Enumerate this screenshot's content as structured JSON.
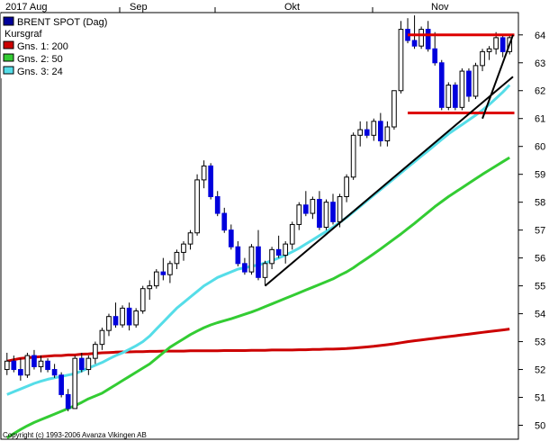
{
  "chart_data": {
    "type": "candlestick",
    "title": "BRENT SPOT (Dag)",
    "subtitle": "Kursgraf",
    "x_labels": [
      "2017 Aug",
      "Sep",
      "Okt",
      "Nov"
    ],
    "y_ticks": [
      50,
      51,
      52,
      53,
      54,
      55,
      56,
      57,
      58,
      59,
      60,
      61,
      62,
      63,
      64
    ],
    "ylim": [
      49.5,
      64.8
    ],
    "grid": false,
    "legend_position": "top-left",
    "copyright": "Copyright (c) 1993-2006 Avanza Vikingen AB",
    "legend": [
      {
        "label": "Gns. 1: 200",
        "color": "#cc0000"
      },
      {
        "label": "Gns. 2: 50",
        "color": "#33cc33"
      },
      {
        "label": "Gns. 3: 24",
        "color": "#55dde8"
      }
    ],
    "colors": {
      "up": "#ffffff",
      "down": "#0000dd",
      "wick": "#000000",
      "resistance": "#dd0000",
      "trend": "#000000"
    },
    "candles": [
      [
        52.0,
        52.6,
        51.8,
        52.3
      ],
      [
        52.3,
        52.5,
        51.9,
        52.0
      ],
      [
        52.0,
        52.4,
        51.6,
        51.8
      ],
      [
        51.8,
        52.6,
        51.7,
        52.5
      ],
      [
        52.5,
        52.7,
        52.0,
        52.1
      ],
      [
        52.1,
        52.5,
        51.9,
        52.3
      ],
      [
        52.3,
        52.4,
        51.9,
        52.0
      ],
      [
        52.0,
        52.2,
        51.7,
        51.8
      ],
      [
        51.8,
        51.9,
        51.0,
        51.1
      ],
      [
        51.1,
        51.3,
        50.5,
        50.6
      ],
      [
        50.6,
        52.5,
        50.6,
        52.4
      ],
      [
        52.4,
        52.6,
        51.9,
        52.0
      ],
      [
        52.0,
        52.5,
        51.8,
        52.4
      ],
      [
        52.4,
        53.0,
        52.2,
        52.9
      ],
      [
        52.9,
        53.5,
        52.7,
        53.4
      ],
      [
        53.4,
        54.0,
        53.2,
        53.9
      ],
      [
        53.9,
        54.4,
        53.5,
        53.6
      ],
      [
        53.6,
        54.3,
        53.5,
        54.2
      ],
      [
        54.2,
        54.4,
        53.4,
        53.6
      ],
      [
        53.6,
        54.2,
        53.5,
        54.1
      ],
      [
        54.1,
        55.0,
        54.0,
        54.9
      ],
      [
        54.9,
        55.2,
        54.5,
        55.0
      ],
      [
        55.0,
        55.6,
        54.9,
        55.5
      ],
      [
        55.5,
        56.0,
        55.2,
        55.4
      ],
      [
        55.4,
        55.9,
        55.1,
        55.8
      ],
      [
        55.8,
        56.3,
        55.6,
        56.2
      ],
      [
        56.2,
        56.6,
        55.9,
        56.5
      ],
      [
        56.5,
        57.0,
        56.3,
        56.9
      ],
      [
        56.9,
        59.0,
        56.8,
        58.8
      ],
      [
        58.8,
        59.5,
        58.5,
        59.3
      ],
      [
        59.3,
        59.4,
        58.1,
        58.2
      ],
      [
        58.2,
        58.4,
        57.5,
        57.6
      ],
      [
        57.6,
        57.8,
        56.9,
        57.0
      ],
      [
        57.0,
        57.2,
        56.3,
        56.4
      ],
      [
        56.4,
        56.6,
        55.7,
        55.8
      ],
      [
        55.8,
        56.0,
        55.4,
        55.5
      ],
      [
        55.5,
        56.5,
        55.4,
        56.4
      ],
      [
        56.4,
        57.0,
        55.2,
        55.3
      ],
      [
        55.3,
        55.9,
        55.0,
        55.8
      ],
      [
        55.8,
        56.4,
        55.6,
        56.3
      ],
      [
        56.3,
        56.8,
        56.0,
        56.1
      ],
      [
        56.1,
        56.6,
        55.8,
        56.5
      ],
      [
        56.5,
        57.3,
        56.3,
        57.2
      ],
      [
        57.2,
        58.0,
        57.0,
        57.9
      ],
      [
        57.9,
        58.4,
        57.5,
        57.6
      ],
      [
        57.6,
        58.2,
        57.4,
        58.1
      ],
      [
        58.1,
        58.4,
        57.0,
        57.1
      ],
      [
        57.1,
        58.1,
        57.0,
        58.0
      ],
      [
        58.0,
        58.3,
        57.2,
        57.3
      ],
      [
        57.3,
        58.3,
        57.1,
        58.2
      ],
      [
        58.2,
        59.0,
        58.0,
        58.9
      ],
      [
        58.9,
        60.5,
        58.8,
        60.4
      ],
      [
        60.4,
        60.9,
        60.0,
        60.6
      ],
      [
        60.6,
        60.9,
        60.3,
        60.4
      ],
      [
        60.4,
        61.0,
        60.2,
        60.9
      ],
      [
        60.9,
        61.2,
        60.0,
        60.2
      ],
      [
        60.2,
        60.9,
        60.0,
        60.7
      ],
      [
        60.7,
        62.0,
        60.6,
        62.0
      ],
      [
        62.0,
        64.5,
        61.9,
        64.2
      ],
      [
        64.2,
        64.6,
        63.7,
        63.8
      ],
      [
        63.8,
        64.7,
        63.5,
        63.6
      ],
      [
        63.6,
        64.3,
        63.5,
        64.2
      ],
      [
        64.2,
        64.5,
        63.4,
        63.5
      ],
      [
        63.5,
        64.1,
        62.9,
        63.0
      ],
      [
        63.0,
        63.1,
        61.3,
        61.4
      ],
      [
        61.4,
        62.3,
        61.3,
        62.2
      ],
      [
        62.2,
        62.3,
        61.3,
        61.4
      ],
      [
        61.4,
        62.8,
        61.3,
        62.7
      ],
      [
        62.7,
        62.8,
        61.6,
        61.8
      ],
      [
        61.8,
        63.0,
        61.7,
        62.9
      ],
      [
        62.9,
        63.5,
        62.7,
        63.4
      ],
      [
        63.4,
        63.6,
        63.1,
        63.5
      ],
      [
        63.5,
        64.1,
        63.3,
        63.9
      ],
      [
        63.9,
        64.0,
        63.2,
        63.4
      ],
      [
        63.4,
        64.0,
        63.3,
        63.9
      ]
    ],
    "series": [
      {
        "name": "Gns. 1: 200",
        "values": [
          52.3,
          52.35,
          52.4,
          52.42,
          52.44,
          52.46,
          52.48,
          52.5,
          52.5,
          52.52,
          52.52,
          52.55,
          52.56,
          52.58,
          52.6,
          52.61,
          52.62,
          52.63,
          52.63,
          52.64,
          52.64,
          52.65,
          52.65,
          52.66,
          52.66,
          52.66,
          52.66,
          52.67,
          52.67,
          52.67,
          52.67,
          52.67,
          52.68,
          52.68,
          52.68,
          52.68,
          52.69,
          52.69,
          52.69,
          52.7,
          52.7,
          52.7,
          52.7,
          52.71,
          52.71,
          52.72,
          52.72,
          52.73,
          52.73,
          52.74,
          52.75,
          52.77,
          52.79,
          52.81,
          52.83,
          52.86,
          52.89,
          52.92,
          52.96,
          53.0,
          53.03,
          53.06,
          53.09,
          53.12,
          53.15,
          53.18,
          53.21,
          53.24,
          53.27,
          53.3,
          53.33,
          53.36,
          53.39,
          53.42,
          53.45
        ]
      },
      {
        "name": "Gns. 2: 50",
        "values": [
          49.55,
          49.7,
          49.85,
          49.98,
          50.1,
          50.2,
          50.3,
          50.4,
          50.5,
          50.6,
          50.7,
          50.82,
          50.95,
          51.05,
          51.15,
          51.3,
          51.45,
          51.6,
          51.75,
          51.9,
          52.05,
          52.2,
          52.4,
          52.6,
          52.8,
          52.95,
          53.1,
          53.25,
          53.38,
          53.5,
          53.6,
          53.68,
          53.75,
          53.82,
          53.9,
          53.98,
          54.06,
          54.15,
          54.25,
          54.35,
          54.45,
          54.55,
          54.65,
          54.75,
          54.85,
          54.95,
          55.05,
          55.15,
          55.25,
          55.38,
          55.5,
          55.65,
          55.82,
          55.98,
          56.15,
          56.32,
          56.5,
          56.68,
          56.86,
          57.05,
          57.24,
          57.44,
          57.64,
          57.84,
          58.02,
          58.2,
          58.36,
          58.52,
          58.68,
          58.84,
          59.0,
          59.15,
          59.3,
          59.45,
          59.6
        ]
      },
      {
        "name": "Gns. 3: 24",
        "values": [
          51.1,
          51.2,
          51.3,
          51.4,
          51.5,
          51.58,
          51.65,
          51.7,
          51.75,
          51.8,
          51.85,
          51.95,
          52.05,
          52.15,
          52.25,
          52.38,
          52.5,
          52.6,
          52.72,
          52.85,
          53.0,
          53.2,
          53.45,
          53.7,
          53.95,
          54.2,
          54.4,
          54.6,
          54.8,
          55.0,
          55.15,
          55.3,
          55.4,
          55.5,
          55.6,
          55.65,
          55.7,
          55.75,
          55.82,
          55.9,
          56.0,
          56.1,
          56.22,
          56.35,
          56.5,
          56.65,
          56.8,
          56.95,
          57.1,
          57.28,
          57.45,
          57.65,
          57.85,
          58.05,
          58.25,
          58.45,
          58.65,
          58.85,
          59.05,
          59.25,
          59.45,
          59.65,
          59.85,
          60.05,
          60.25,
          60.45,
          60.62,
          60.78,
          60.95,
          61.12,
          61.3,
          61.5,
          61.72,
          61.95,
          62.2
        ]
      }
    ],
    "annotations": {
      "resistance_lines": [
        {
          "y": 64.0,
          "x_start": 59,
          "x_end": 77
        },
        {
          "y": 61.2,
          "x_start": 59,
          "x_end": 77
        }
      ],
      "trend_lines": [
        {
          "x1": 38,
          "y1": 55.0,
          "x2": 78,
          "y2": 62.5
        },
        {
          "x1": 70,
          "y1": 61.0,
          "x2": 78,
          "y2": 64.0
        }
      ]
    }
  }
}
